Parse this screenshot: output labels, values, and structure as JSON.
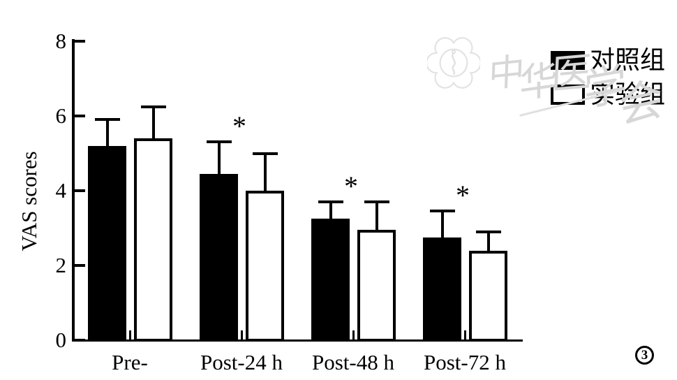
{
  "figure": {
    "number": "3"
  },
  "watermark": {
    "text": "中华医学会"
  },
  "chart_data": {
    "type": "bar",
    "title": "",
    "xlabel": "",
    "ylabel": "VAS scores",
    "categories": [
      "Pre-",
      "Post-24 h",
      "Post-48 h",
      "Post-72 h"
    ],
    "series": [
      {
        "name": "对照组",
        "fill": "#000000",
        "values": [
          5.2,
          4.45,
          3.25,
          2.75
        ],
        "errors": [
          0.7,
          0.85,
          0.45,
          0.7
        ]
      },
      {
        "name": "实验组",
        "fill": "#ffffff",
        "values": [
          5.4,
          4.0,
          2.95,
          2.4
        ],
        "errors": [
          0.85,
          1.0,
          0.75,
          0.5
        ]
      }
    ],
    "significance_marker": "*",
    "significant_groups": [
      false,
      true,
      true,
      true
    ],
    "ylim": [
      0,
      8
    ],
    "y_ticks": [
      0,
      2,
      4,
      6,
      8
    ],
    "grid": false,
    "legend_position": "top-right",
    "bar_color_control": "#000000",
    "bar_color_experimental": "#ffffff"
  }
}
